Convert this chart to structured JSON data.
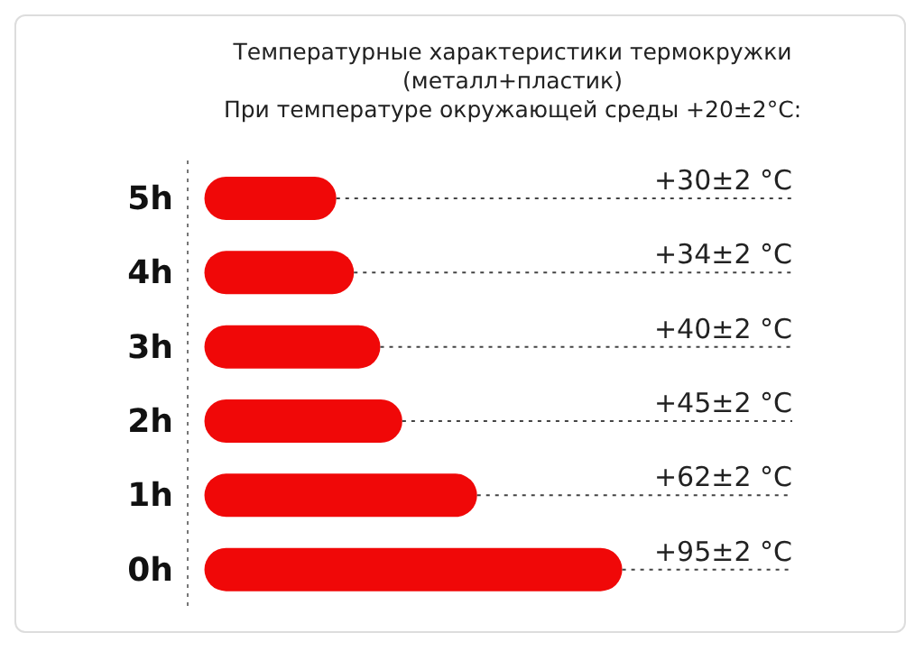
{
  "chart_data": {
    "type": "bar",
    "orientation": "horizontal",
    "title": "Температурные характеристики термокружки (металл+пластик)",
    "subtitle": "При температуре окружающей среды +20±2°C:",
    "categories": [
      "5h",
      "4h",
      "3h",
      "2h",
      "1h",
      "0h"
    ],
    "values": [
      30,
      34,
      40,
      45,
      62,
      95
    ],
    "value_labels": [
      "+30±2 °C",
      "+34±2 °C",
      "+40±2 °C",
      "+45±2 °C",
      "+62±2 °C",
      "+95±2 °C"
    ],
    "color": "#f00808"
  }
}
